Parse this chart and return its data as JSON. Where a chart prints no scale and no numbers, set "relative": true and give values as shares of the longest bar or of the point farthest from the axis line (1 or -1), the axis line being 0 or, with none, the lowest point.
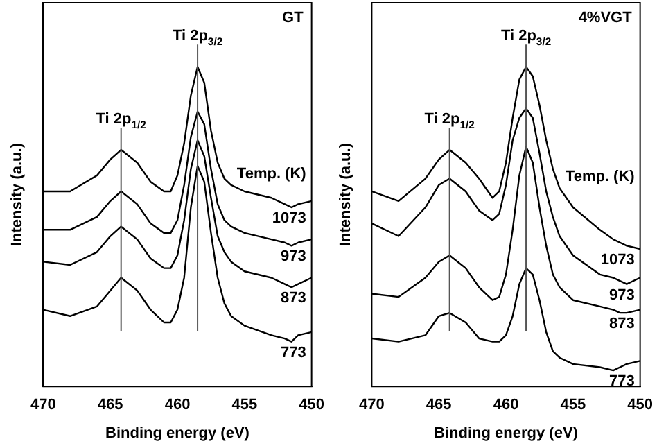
{
  "chart_data": [
    {
      "type": "line",
      "title": "GT",
      "xlabel": "Binding energy (eV)",
      "ylabel": "Intensity (a.u.)",
      "legend_title": "Temp. (K)",
      "relative": true,
      "legend": false,
      "marker": "none",
      "line_style": "solid",
      "xlim": [
        470,
        450
      ],
      "xticks": [
        470,
        465,
        460,
        455,
        450
      ],
      "x": [
        470,
        468,
        466,
        465,
        464.2,
        463,
        462,
        461,
        460.5,
        460,
        459.5,
        459,
        458.5,
        458,
        457.5,
        457,
        456.5,
        456,
        455,
        453,
        452,
        451.5,
        451,
        450
      ],
      "ref_lines": [
        {
          "axis": "x",
          "value": 464.2,
          "label": "Ti 2p$_{1/2}$",
          "color": "#555555"
        },
        {
          "axis": "x",
          "value": 458.5,
          "label": "Ti 2p$_{3/2}$",
          "color": "#555555"
        }
      ],
      "series": [
        {
          "name": "1073",
          "color": "#000000",
          "values": [
            0.61,
            0.61,
            0.66,
            0.71,
            0.74,
            0.7,
            0.64,
            0.61,
            0.61,
            0.66,
            0.76,
            0.91,
            1,
            0.95,
            0.8,
            0.7,
            0.65,
            0.63,
            0.61,
            0.59,
            0.57,
            0.56,
            0.57,
            0.58
          ]
        },
        {
          "name": "973",
          "color": "#000000",
          "values": [
            0.49,
            0.49,
            0.53,
            0.58,
            0.61,
            0.57,
            0.51,
            0.48,
            0.48,
            0.52,
            0.63,
            0.78,
            0.86,
            0.82,
            0.68,
            0.57,
            0.52,
            0.5,
            0.48,
            0.46,
            0.45,
            0.44,
            0.45,
            0.46
          ]
        },
        {
          "name": "873",
          "color": "#000000",
          "values": [
            0.39,
            0.38,
            0.42,
            0.47,
            0.5,
            0.46,
            0.4,
            0.37,
            0.37,
            0.41,
            0.52,
            0.68,
            0.77,
            0.72,
            0.59,
            0.47,
            0.42,
            0.39,
            0.36,
            0.34,
            0.32,
            0.31,
            0.32,
            0.34
          ]
        },
        {
          "name": "773",
          "color": "#000000",
          "values": [
            0.24,
            0.22,
            0.25,
            0.3,
            0.34,
            0.3,
            0.24,
            0.2,
            0.2,
            0.24,
            0.34,
            0.56,
            0.69,
            0.64,
            0.48,
            0.34,
            0.26,
            0.22,
            0.19,
            0.16,
            0.15,
            0.14,
            0.16,
            0.17
          ]
        }
      ]
    },
    {
      "type": "line",
      "title": "4%VGT",
      "xlabel": "Binding energy (eV)",
      "ylabel": "Intensity (a.u.)",
      "legend_title": "Temp. (K)",
      "relative": true,
      "legend": false,
      "marker": "none",
      "line_style": "solid",
      "xlim": [
        470,
        450
      ],
      "xticks": [
        470,
        465,
        460,
        455,
        450
      ],
      "x": [
        470,
        468,
        466,
        465,
        464.2,
        463,
        462,
        461,
        460.5,
        460,
        459.5,
        459,
        458.5,
        458,
        457.5,
        457,
        456.5,
        456,
        455,
        453,
        452,
        451.5,
        451,
        450
      ],
      "ref_lines": [
        {
          "axis": "x",
          "value": 464.2,
          "label": "Ti 2p$_{1/2}$",
          "color": "#555555"
        },
        {
          "axis": "x",
          "value": 458.5,
          "label": "Ti 2p$_{3/2}$",
          "color": "#555555"
        }
      ],
      "series": [
        {
          "name": "1073",
          "color": "#000000",
          "values": [
            0.61,
            0.58,
            0.65,
            0.71,
            0.74,
            0.7,
            0.65,
            0.59,
            0.61,
            0.7,
            0.84,
            0.96,
            1,
            0.97,
            0.88,
            0.77,
            0.68,
            0.62,
            0.56,
            0.49,
            0.46,
            0.45,
            0.44,
            0.43
          ]
        },
        {
          "name": "973",
          "color": "#000000",
          "values": [
            0.51,
            0.47,
            0.56,
            0.63,
            0.65,
            0.61,
            0.55,
            0.52,
            0.54,
            0.63,
            0.77,
            0.84,
            0.87,
            0.84,
            0.73,
            0.61,
            0.53,
            0.47,
            0.41,
            0.35,
            0.34,
            0.33,
            0.32,
            0.34
          ]
        },
        {
          "name": "873",
          "color": "#000000",
          "values": [
            0.29,
            0.28,
            0.34,
            0.39,
            0.41,
            0.37,
            0.31,
            0.27,
            0.28,
            0.35,
            0.49,
            0.66,
            0.75,
            0.7,
            0.56,
            0.44,
            0.35,
            0.31,
            0.27,
            0.25,
            0.24,
            0.23,
            0.23,
            0.24
          ]
        },
        {
          "name": "773",
          "color": "#000000",
          "values": [
            0.15,
            0.14,
            0.16,
            0.22,
            0.23,
            0.2,
            0.15,
            0.14,
            0.14,
            0.16,
            0.22,
            0.32,
            0.37,
            0.35,
            0.27,
            0.17,
            0.11,
            0.09,
            0.07,
            0.06,
            0.05,
            0.06,
            0.07,
            0.08
          ]
        }
      ]
    }
  ]
}
